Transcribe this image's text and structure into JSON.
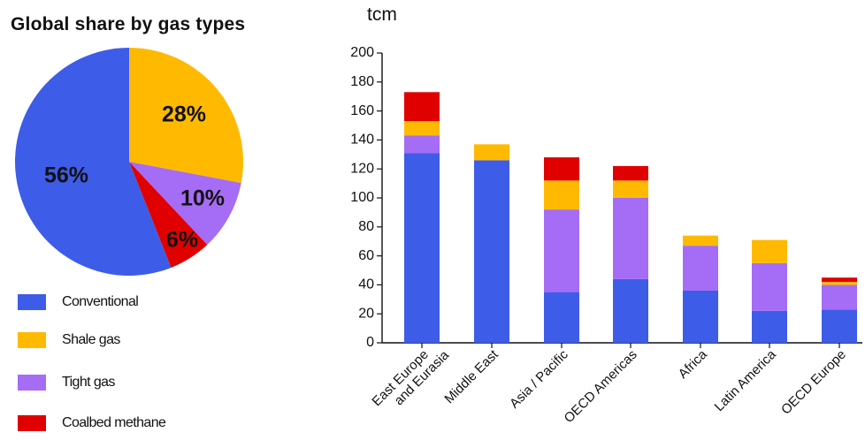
{
  "chart_data": [
    {
      "type": "pie",
      "title": "Global share by gas types",
      "slices": [
        {
          "label": "Conventional",
          "value": 56,
          "display": "56%",
          "color": "#3d5ce8"
        },
        {
          "label": "Shale gas",
          "value": 28,
          "display": "28%",
          "color": "#ffba00"
        },
        {
          "label": "Tight gas",
          "value": 10,
          "display": "10%",
          "color": "#a56cf5"
        },
        {
          "label": "Coalbed methane",
          "value": 6,
          "display": "6%",
          "color": "#e00000"
        }
      ],
      "legend": {
        "placement": "bottom-left",
        "entries": [
          {
            "label": "Conventional",
            "color": "#3d5ce8"
          },
          {
            "label": "Shale gas",
            "color": "#ffba00"
          },
          {
            "label": "Tight gas",
            "color": "#a56cf5"
          },
          {
            "label": "Coalbed methane",
            "color": "#e00000"
          }
        ]
      }
    },
    {
      "type": "bar",
      "stacked": true,
      "ylabel": "tcm",
      "ylim": [
        0,
        200
      ],
      "yticks": [
        "0",
        "20",
        "40",
        "60",
        "80",
        "100",
        "120",
        "140",
        "160",
        "180",
        "200"
      ],
      "categories": [
        "East Europe and Eurasia",
        "Middle East",
        "Asia / Pacific",
        "OECD Americas",
        "Africa",
        "Latin America",
        "OECD Europe"
      ],
      "category_labels": [
        [
          "East Europe",
          "and Eurasia"
        ],
        [
          "Middle East"
        ],
        [
          "Asia / Pacific"
        ],
        [
          "OECD Americas"
        ],
        [
          "Africa"
        ],
        [
          "Latin America"
        ],
        [
          "OECD Europe"
        ]
      ],
      "series": [
        {
          "name": "Conventional",
          "color": "#3d5ce8",
          "values": [
            131,
            126,
            35,
            44,
            36,
            22,
            23
          ]
        },
        {
          "name": "Tight gas",
          "color": "#a56cf5",
          "values": [
            12,
            0,
            57,
            56,
            31,
            33,
            17
          ]
        },
        {
          "name": "Shale gas",
          "color": "#ffba00",
          "values": [
            10,
            11,
            20,
            12,
            7,
            16,
            2
          ]
        },
        {
          "name": "Coalbed methane",
          "color": "#e00000",
          "values": [
            20,
            0,
            16,
            10,
            0,
            0,
            3
          ]
        }
      ],
      "grid": false,
      "legend": "shared"
    }
  ]
}
